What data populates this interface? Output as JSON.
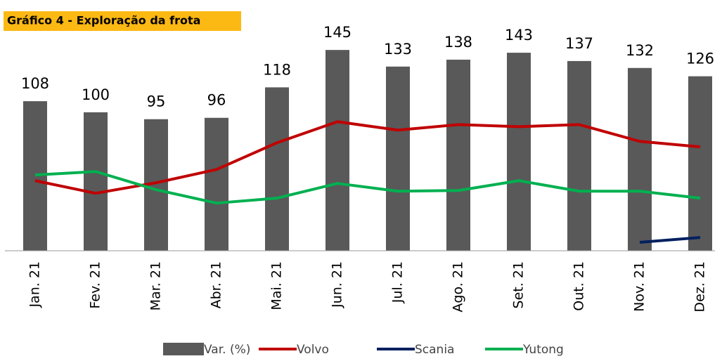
{
  "chart_data": {
    "type": "bar",
    "title": "Gráfico 4 - Exploração da frota",
    "categories": [
      "Jan. 21",
      "Fev. 21",
      "Mar. 21",
      "Abr. 21",
      "Mai. 21",
      "Jun. 21",
      "Jul. 21",
      "Ago. 21",
      "Set. 21",
      "Out. 21",
      "Nov. 21",
      "Dez. 21"
    ],
    "ylim": [
      0,
      175
    ],
    "series": [
      {
        "name": "Var. (%)",
        "type": "bar",
        "color": "#595959",
        "values": [
          108,
          100,
          95,
          96,
          118,
          145,
          133,
          138,
          143,
          137,
          132,
          126
        ]
      },
      {
        "name": "Volvo",
        "type": "line",
        "color": "#c00000",
        "values": [
          50.6,
          41.5,
          49.1,
          58.7,
          78.0,
          93.2,
          87.1,
          91.1,
          89.6,
          91.1,
          79.0,
          75.0
        ]
      },
      {
        "name": "Scania",
        "type": "line",
        "color": "#002060",
        "values": [
          null,
          null,
          null,
          null,
          null,
          null,
          null,
          null,
          null,
          null,
          6.1,
          9.6
        ]
      },
      {
        "name": "Yutong",
        "type": "line",
        "color": "#00b050",
        "values": [
          54.7,
          57.2,
          44.1,
          34.4,
          38.0,
          48.6,
          43.0,
          43.5,
          50.6,
          43.0,
          43.0,
          38.0
        ]
      }
    ]
  }
}
